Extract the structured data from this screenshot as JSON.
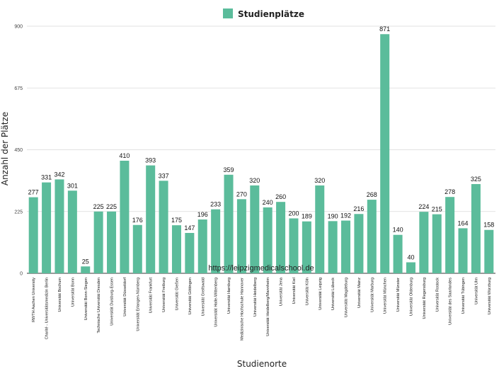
{
  "chart_data": {
    "type": "bar",
    "title": "",
    "legend": "Studienplätze",
    "legend_position": "top-center",
    "xlabel": "Studienorte",
    "ylabel": "Anzahl der Plätze",
    "ylim": [
      0,
      900
    ],
    "yticks": [
      0,
      225,
      450,
      675,
      900
    ],
    "grid": true,
    "bar_color": "#5bbc9b",
    "watermark": "https://leipzigmedicalschool.de",
    "categories": [
      "RWTH Aachen University",
      "Charité - Universitätsmedizin Berlin",
      "Universität Bochum",
      "Universität Bonn",
      "Universität Bonn-Siegen",
      "Technische Universität Dresden",
      "Universität Duisburg-Essen",
      "Universität Düsseldorf",
      "Universität Erlangen-Nürnberg",
      "Universität Frankfurt",
      "Universität Freiburg",
      "Universität Gießen",
      "Universität Göttingen",
      "Universität Greifswald",
      "Universität Halle-Wittenberg",
      "Universität Hamburg",
      "Medizinische Hochschule Hannover",
      "Universität Heidelberg",
      "Universität Heidelberg/Mannheim",
      "Universität Jena",
      "Universität Kiel",
      "Universität Köln",
      "Universität Leipzig",
      "Universität Lübeck",
      "Universität Magdeburg",
      "Universität Mainz",
      "Universität Marburg",
      "Universität München",
      "Universität Münster",
      "Universität Oldenburg",
      "Universität Regensburg",
      "Universität Rostock",
      "Universität des Saarlandes",
      "Universität Tübingen",
      "Universität Ulm",
      "Universität Würzburg"
    ],
    "values": [
      277,
      331,
      342,
      301,
      25,
      225,
      225,
      410,
      176,
      393,
      337,
      175,
      147,
      196,
      233,
      359,
      270,
      320,
      240,
      260,
      200,
      189,
      320,
      190,
      192,
      216,
      268,
      871,
      140,
      40,
      224,
      215,
      278,
      164,
      325,
      158
    ]
  }
}
